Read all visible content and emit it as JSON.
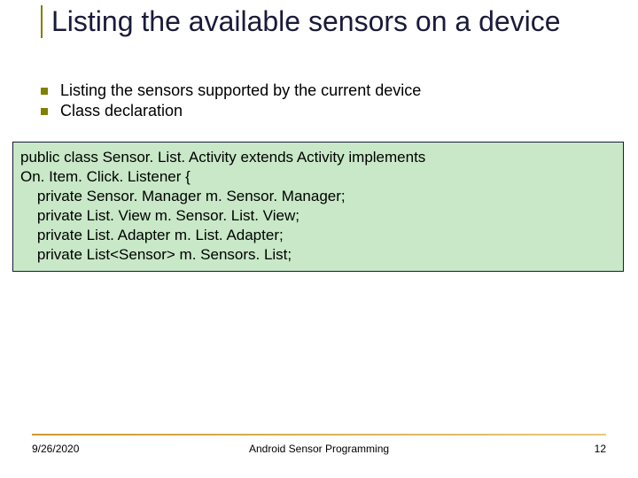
{
  "title": "Listing the available sensors on a device",
  "bullets": [
    "Listing the sensors supported by the current device",
    "Class declaration"
  ],
  "code": {
    "lines": [
      "public class Sensor. List. Activity extends Activity implements",
      "On. Item. Click. Listener {",
      "    private Sensor. Manager m. Sensor. Manager;",
      "    private List. View m. Sensor. List. View;",
      "    private List. Adapter m. List. Adapter;",
      "    private List<Sensor> m. Sensors. List;"
    ],
    "background_color": "#c8e8c8",
    "border_color": "#1a1a3a",
    "text_color": "#000000",
    "fontsize": 17
  },
  "accent_color": "#808000",
  "title_color": "#1a1a3a",
  "footer": {
    "date": "9/26/2020",
    "center": "Android Sensor Programming",
    "page": "12",
    "rule_color_left": "#cc9933",
    "rule_color_right": "#e6c878"
  }
}
